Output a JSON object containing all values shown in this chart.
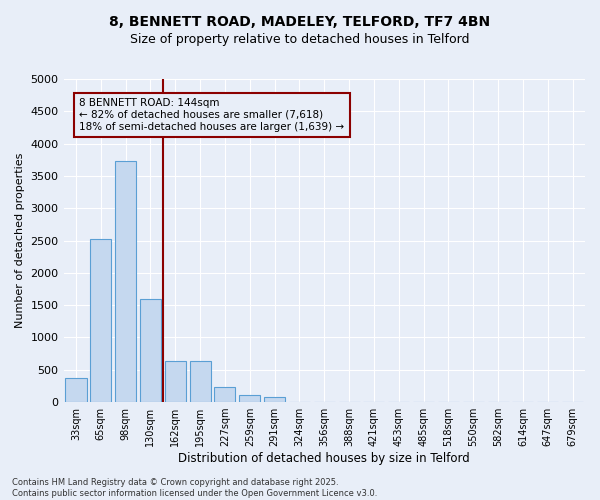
{
  "title_line1": "8, BENNETT ROAD, MADELEY, TELFORD, TF7 4BN",
  "title_line2": "Size of property relative to detached houses in Telford",
  "xlabel": "Distribution of detached houses by size in Telford",
  "ylabel": "Number of detached properties",
  "categories": [
    "33sqm",
    "65sqm",
    "98sqm",
    "130sqm",
    "162sqm",
    "195sqm",
    "227sqm",
    "259sqm",
    "291sqm",
    "324sqm",
    "356sqm",
    "388sqm",
    "421sqm",
    "453sqm",
    "485sqm",
    "518sqm",
    "550sqm",
    "582sqm",
    "614sqm",
    "647sqm",
    "679sqm"
  ],
  "values": [
    370,
    2530,
    3730,
    1600,
    630,
    630,
    230,
    110,
    75,
    0,
    0,
    0,
    0,
    0,
    0,
    0,
    0,
    0,
    0,
    0,
    0
  ],
  "bar_color": "#c5d8ef",
  "bar_edge_color": "#5a9fd4",
  "vline_color": "#8b0000",
  "annotation_text": "8 BENNETT ROAD: 144sqm\n← 82% of detached houses are smaller (7,618)\n18% of semi-detached houses are larger (1,639) →",
  "annotation_box_edgecolor": "#8b0000",
  "ylim": [
    0,
    5000
  ],
  "yticks": [
    0,
    500,
    1000,
    1500,
    2000,
    2500,
    3000,
    3500,
    4000,
    4500,
    5000
  ],
  "background_color": "#e8eef8",
  "grid_color": "#ffffff",
  "footer_line1": "Contains HM Land Registry data © Crown copyright and database right 2025.",
  "footer_line2": "Contains public sector information licensed under the Open Government Licence v3.0.",
  "title_fontsize": 10,
  "subtitle_fontsize": 9,
  "bar_width": 0.85,
  "vline_xindex": 3
}
